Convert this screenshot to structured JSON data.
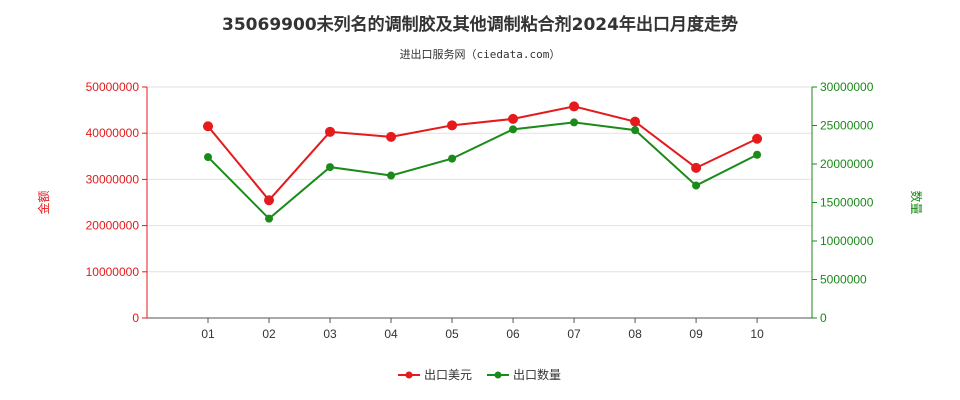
{
  "chart_data": {
    "type": "line",
    "title": "35069900未列名的调制胶及其他调制粘合剂2024年出口月度走势",
    "subtitle": "进出口服务网（ciedata.com）",
    "categories": [
      "01",
      "02",
      "03",
      "04",
      "05",
      "06",
      "07",
      "08",
      "09",
      "10"
    ],
    "series": [
      {
        "name": "出口美元",
        "axis": "left",
        "color": "#e41a1c",
        "values": [
          41500000,
          25500000,
          40300000,
          39200000,
          41700000,
          43100000,
          45800000,
          42500000,
          32500000,
          38800000
        ]
      },
      {
        "name": "出口数量",
        "axis": "right",
        "color": "#1a8a1a",
        "values": [
          20900000,
          12900000,
          19600000,
          18500000,
          20700000,
          24500000,
          25400000,
          24400000,
          17200000,
          21200000
        ]
      }
    ],
    "y_left": {
      "label": "金额",
      "min": 0,
      "max": 50000000,
      "ticks": [
        "0",
        "10000000",
        "20000000",
        "30000000",
        "40000000",
        "50000000"
      ],
      "color": "#e41a1c"
    },
    "y_right": {
      "label": "数量",
      "min": 0,
      "max": 30000000,
      "ticks": [
        "0",
        "5000000",
        "10000000",
        "15000000",
        "20000000",
        "25000000",
        "30000000"
      ],
      "color": "#1a8a1a"
    },
    "grid": true,
    "legend_position": "bottom"
  }
}
